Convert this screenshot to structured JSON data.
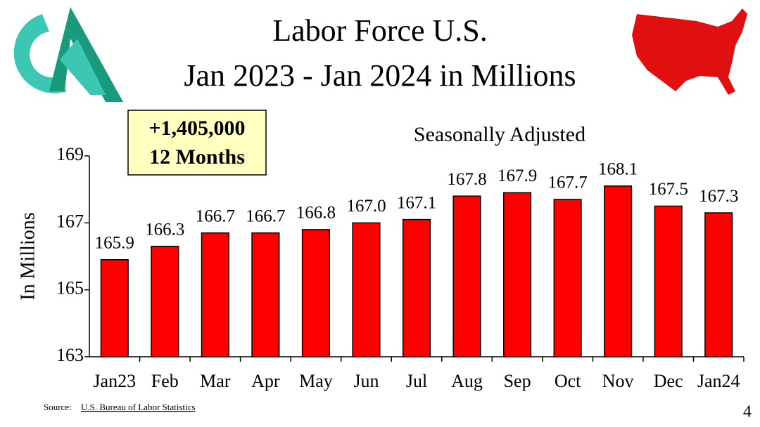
{
  "chart_data": {
    "type": "bar",
    "title": [
      "Labor Force U.S.",
      "Jan 2023 - Jan 2024 in Millions"
    ],
    "subtitle": "Seasonally Adjusted",
    "annotation": [
      "+1,405,000",
      "12 Months"
    ],
    "ylabel": "In Millions",
    "categories": [
      "Jan23",
      "Feb",
      "Mar",
      "Apr",
      "May",
      "Jun",
      "Jul",
      "Aug",
      "Sep",
      "Oct",
      "Nov",
      "Dec",
      "Jan24"
    ],
    "values": [
      165.9,
      166.3,
      166.7,
      166.7,
      166.8,
      167.0,
      167.1,
      167.8,
      167.9,
      167.7,
      168.1,
      167.5,
      167.3
    ],
    "value_labels": [
      "165.9",
      "166.3",
      "166.7",
      "166.7",
      "166.8",
      "167.0",
      "167.1",
      "167.8",
      "167.9",
      "167.7",
      "168.1",
      "167.5",
      "167.3"
    ],
    "color": "#ff0000",
    "ylim": [
      163,
      169
    ],
    "yticks": [
      163,
      165,
      167,
      169
    ],
    "grid": false,
    "source_prefix": "Source:",
    "source": "U.S. Bureau of Labor Statistics"
  },
  "slide": {
    "page": 4
  }
}
